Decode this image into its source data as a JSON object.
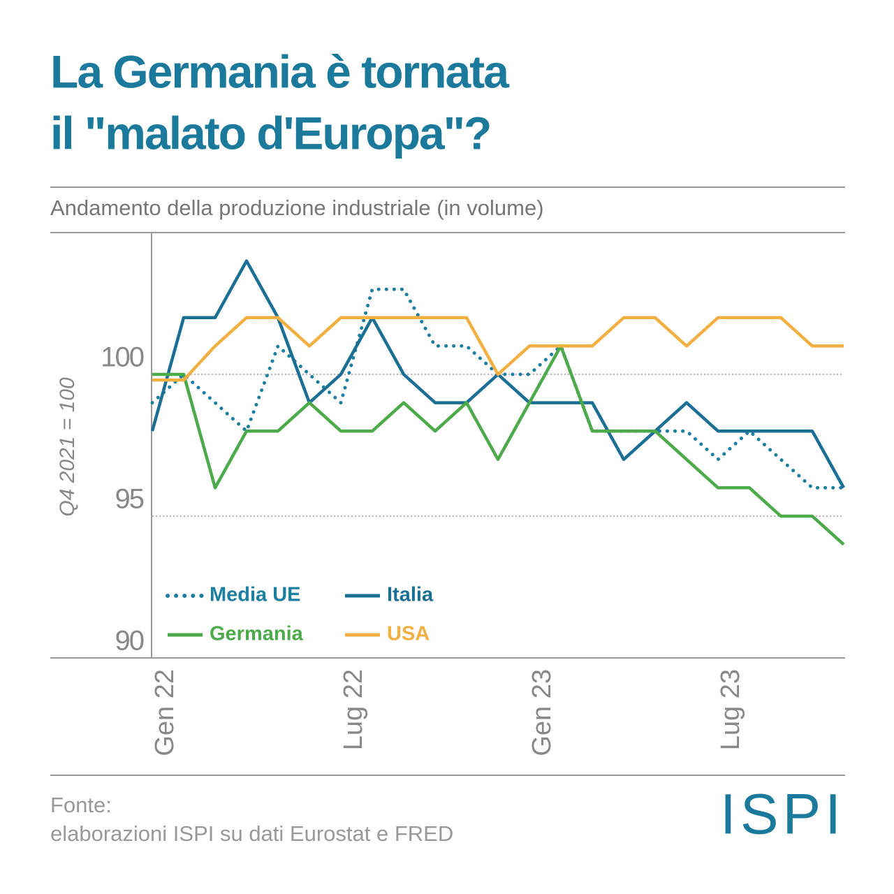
{
  "chart_data": {
    "type": "line",
    "title": [
      "La Germania è tornata",
      "il \"malato d'Europa\"?"
    ],
    "subtitle": "Andamento della produzione industriale (in volume)",
    "y_label": "Q4 2021 = 100",
    "source": [
      "Fonte:",
      "elaborazioni ISPI su dati Eurostat e FRED"
    ],
    "logo": "ISPI",
    "categories": [
      "Gen 22",
      null,
      null,
      null,
      null,
      null,
      "Lug 22",
      null,
      null,
      null,
      null,
      null,
      "Gen 23",
      null,
      null,
      null,
      null,
      null,
      "Lug 23",
      null,
      null,
      null,
      null
    ],
    "series": [
      {
        "name": "Media UE",
        "color": "#1d7fa0",
        "dotted": true,
        "values": [
          99,
          100,
          99,
          98,
          101,
          100,
          99,
          103,
          103,
          101,
          101,
          100,
          100,
          101,
          98,
          98,
          98,
          98,
          97,
          98,
          97,
          96,
          96
        ]
      },
      {
        "name": "Italia",
        "color": "#1b6f94",
        "values": [
          98,
          102,
          102,
          104,
          102,
          99,
          100,
          102,
          100,
          99,
          99,
          100,
          99,
          99,
          99,
          97,
          98,
          99,
          98,
          98,
          98,
          98,
          96
        ]
      },
      {
        "name": "Germania",
        "color": "#4caa4a",
        "values": [
          100,
          100,
          96,
          98,
          98,
          99,
          98,
          98,
          99,
          98,
          99,
          97,
          99,
          101,
          98,
          98,
          98,
          97,
          96,
          96,
          95,
          95,
          94
        ]
      },
      {
        "name": "USA",
        "color": "#f2b043",
        "values": [
          99.8,
          99.8,
          101,
          102,
          102,
          101,
          102,
          102,
          102,
          102,
          102,
          100,
          101,
          101,
          101,
          102,
          102,
          101,
          102,
          102,
          102,
          101,
          101
        ]
      }
    ],
    "ylim": [
      90,
      105
    ],
    "yticks": [
      90,
      95,
      100
    ],
    "grid": true
  }
}
